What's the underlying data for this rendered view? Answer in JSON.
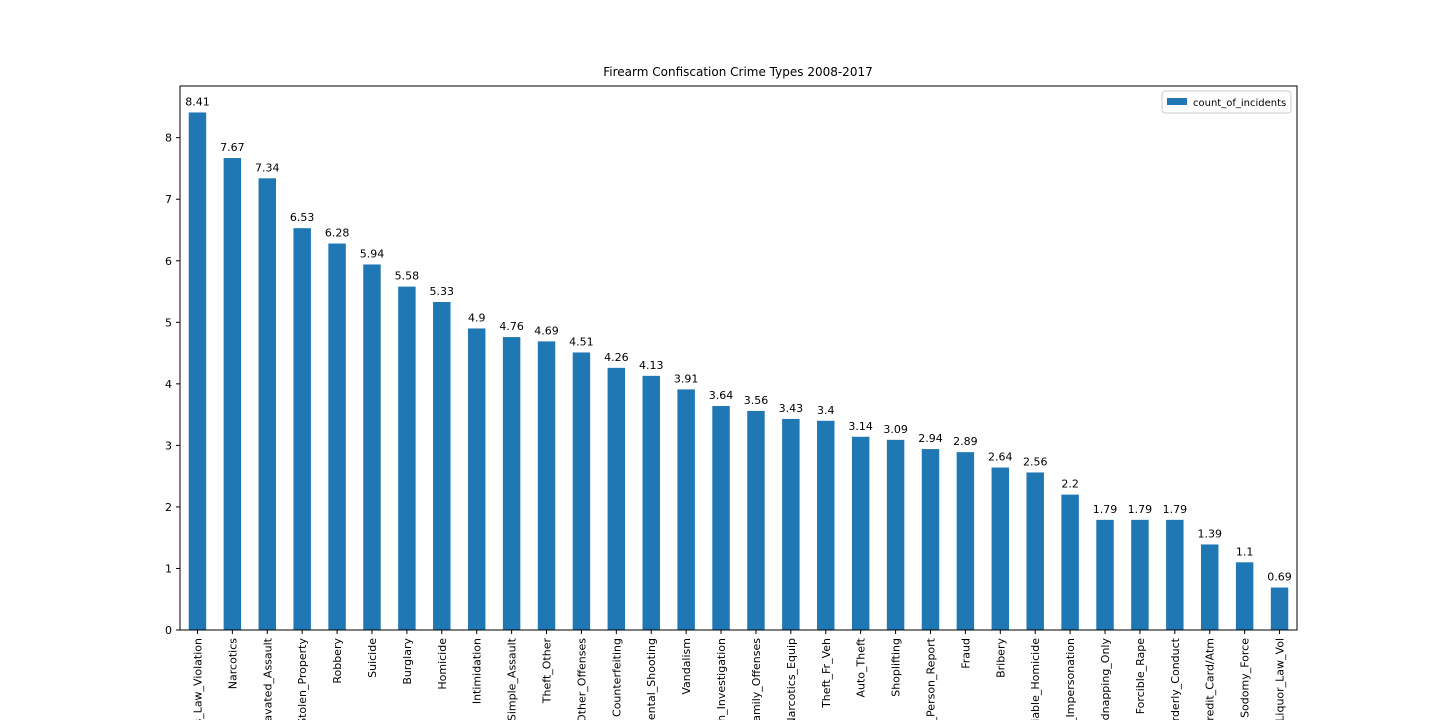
{
  "chart_data": {
    "type": "bar",
    "title": "Firearm Confiscation Crime Types 2008-2017",
    "categories": [
      "ns_Law_Violation",
      "Narcotics",
      "ravated_Assault",
      "Stolen_Property",
      "Robbery",
      "Suicide",
      "Burglary",
      "Homicide",
      "Intimidation",
      "Simple_Assault",
      "Theft_Other",
      "_Other_Offenses",
      "Counterfeiting",
      "dental_Shooting",
      "Vandalism",
      "th_Investigation",
      "Family_Offenses",
      "Narcotics_Equip",
      "Theft_Fr_Veh",
      "Auto_Theft",
      "Shoplifting",
      "d_Person_Report",
      "Fraud",
      "Bribery",
      "ifiable_Homicide",
      "d_Impersonation",
      "Kidnapping_Only",
      "Forcible_Rape",
      "orderly_Conduct",
      "Credit_Card/Atm",
      "Sodomy_Force",
      "Liquor_Law_Vol"
    ],
    "series": [
      {
        "name": "count_of_incidents",
        "color": "#1f77b4",
        "values": [
          8.41,
          7.67,
          7.34,
          6.53,
          6.28,
          5.94,
          5.58,
          5.33,
          4.9,
          4.76,
          4.69,
          4.51,
          4.26,
          4.13,
          3.91,
          3.64,
          3.56,
          3.43,
          3.4,
          3.14,
          3.09,
          2.94,
          2.89,
          2.64,
          2.56,
          2.2,
          1.79,
          1.79,
          1.79,
          1.39,
          1.1,
          0.69
        ]
      }
    ],
    "ylim": [
      0,
      8.84
    ],
    "yticks": [
      0,
      1,
      2,
      3,
      4,
      5,
      6,
      7,
      8
    ],
    "legend": "upper right",
    "data_labels": true
  }
}
